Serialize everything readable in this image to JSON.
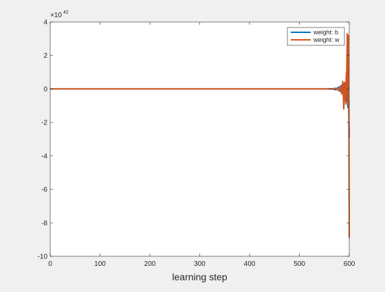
{
  "chart_data": {
    "type": "line",
    "title": "",
    "xlabel": "learning step",
    "ylabel": "",
    "xlim": [
      0,
      600
    ],
    "ylim": [
      -10,
      4
    ],
    "y_scale_exponent": "42",
    "y_scale_base": "×10",
    "x_ticks": [
      "0",
      "100",
      "200",
      "300",
      "400",
      "500",
      "600"
    ],
    "y_ticks": [
      "-10",
      "-8",
      "-6",
      "-4",
      "-2",
      "0",
      "2",
      "4"
    ],
    "x_tick_values": [
      0,
      100,
      200,
      300,
      400,
      500,
      600
    ],
    "y_tick_values": [
      -10,
      -8,
      -6,
      -4,
      -2,
      0,
      2,
      4
    ],
    "grid": false,
    "legend_position": "top-right",
    "series": [
      {
        "name": "weight: b",
        "color": "#0072BD",
        "x": [
          0,
          550,
          565,
          572,
          578,
          582,
          585,
          588,
          590,
          592,
          594,
          595,
          596,
          597,
          598,
          599,
          600
        ],
        "y": [
          0,
          0,
          0.02,
          -0.05,
          0.1,
          -0.15,
          0.22,
          -0.28,
          0.35,
          -0.45,
          0.6,
          -0.75,
          0.9,
          -1.1,
          1.2,
          -1.3,
          -2.9
        ]
      },
      {
        "name": "weight: w",
        "color": "#D95319",
        "x": [
          0,
          550,
          565,
          572,
          578,
          582,
          585,
          587,
          589,
          591,
          593,
          594,
          595,
          596,
          597,
          598,
          599,
          600
        ],
        "y": [
          0,
          0,
          -0.02,
          0.05,
          -0.1,
          0.18,
          -0.3,
          0.45,
          -1.2,
          0.4,
          -0.9,
          0.8,
          1.1,
          3.3,
          -0.8,
          3.2,
          -1.0,
          -8.9
        ]
      }
    ]
  }
}
